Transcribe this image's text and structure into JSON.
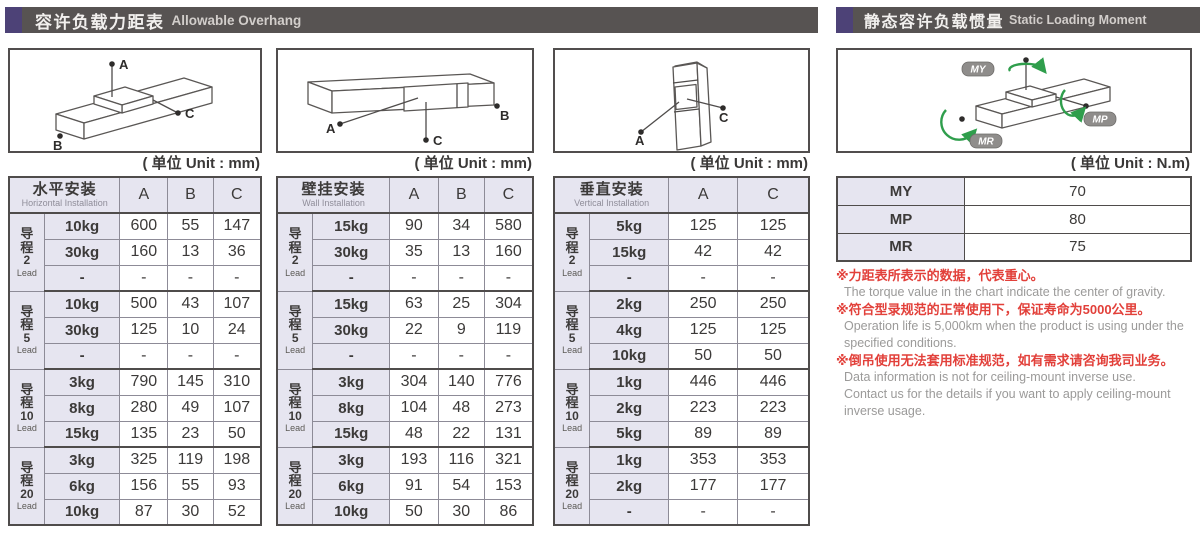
{
  "page": {
    "left_header": {
      "zh": "容许负载力距表",
      "en": "Allowable Overhang"
    },
    "right_header": {
      "zh": "静态容许负载惯量",
      "en": "Static Loading Moment"
    },
    "unit_mm": "( 单位 Unit : mm)",
    "unit_nm": "( 单位 Unit : N.m)"
  },
  "diagrams": {
    "horizontal": {
      "labels": [
        "A",
        "B",
        "C"
      ]
    },
    "wall": {
      "labels": [
        "A",
        "B",
        "C"
      ]
    },
    "vertical": {
      "labels": [
        "A",
        "C"
      ]
    },
    "moment": {
      "labels": [
        "MY",
        "MP",
        "MR"
      ]
    }
  },
  "overhang_tables": [
    {
      "id": "horizontal",
      "title_zh": "水平安装",
      "title_en": "Horizontal Installation",
      "columns": [
        "A",
        "B",
        "C"
      ],
      "col_widths": [
        "14%",
        "30%",
        "19%",
        "18%",
        "19%"
      ],
      "groups": [
        {
          "lead_chars": [
            "导",
            "程"
          ],
          "lead_num": "2",
          "lead_word": "Lead",
          "rows": [
            [
              "10kg",
              "600",
              "55",
              "147"
            ],
            [
              "30kg",
              "160",
              "13",
              "36"
            ],
            [
              "-",
              "-",
              "-",
              "-"
            ]
          ]
        },
        {
          "lead_chars": [
            "导",
            "程"
          ],
          "lead_num": "5",
          "lead_word": "Lead",
          "rows": [
            [
              "10kg",
              "500",
              "43",
              "107"
            ],
            [
              "30kg",
              "125",
              "10",
              "24"
            ],
            [
              "-",
              "-",
              "-",
              "-"
            ]
          ]
        },
        {
          "lead_chars": [
            "导",
            "程"
          ],
          "lead_num": "10",
          "lead_word": "Lead",
          "rows": [
            [
              "3kg",
              "790",
              "145",
              "310"
            ],
            [
              "8kg",
              "280",
              "49",
              "107"
            ],
            [
              "15kg",
              "135",
              "23",
              "50"
            ]
          ]
        },
        {
          "lead_chars": [
            "导",
            "程"
          ],
          "lead_num": "20",
          "lead_word": "Lead",
          "rows": [
            [
              "3kg",
              "325",
              "119",
              "198"
            ],
            [
              "6kg",
              "156",
              "55",
              "93"
            ],
            [
              "10kg",
              "87",
              "30",
              "52"
            ]
          ]
        }
      ]
    },
    {
      "id": "wall",
      "title_zh": "壁挂安装",
      "title_en": "Wall Installation",
      "columns": [
        "A",
        "B",
        "C"
      ],
      "col_widths": [
        "14%",
        "30%",
        "19%",
        "18%",
        "19%"
      ],
      "groups": [
        {
          "lead_chars": [
            "导",
            "程"
          ],
          "lead_num": "2",
          "lead_word": "Lead",
          "rows": [
            [
              "15kg",
              "90",
              "34",
              "580"
            ],
            [
              "30kg",
              "35",
              "13",
              "160"
            ],
            [
              "-",
              "-",
              "-",
              "-"
            ]
          ]
        },
        {
          "lead_chars": [
            "导",
            "程"
          ],
          "lead_num": "5",
          "lead_word": "Lead",
          "rows": [
            [
              "15kg",
              "63",
              "25",
              "304"
            ],
            [
              "30kg",
              "22",
              "9",
              "119"
            ],
            [
              "-",
              "-",
              "-",
              "-"
            ]
          ]
        },
        {
          "lead_chars": [
            "导",
            "程"
          ],
          "lead_num": "10",
          "lead_word": "Lead",
          "rows": [
            [
              "3kg",
              "304",
              "140",
              "776"
            ],
            [
              "8kg",
              "104",
              "48",
              "273"
            ],
            [
              "15kg",
              "48",
              "22",
              "131"
            ]
          ]
        },
        {
          "lead_chars": [
            "导",
            "程"
          ],
          "lead_num": "20",
          "lead_word": "Lead",
          "rows": [
            [
              "3kg",
              "193",
              "116",
              "321"
            ],
            [
              "6kg",
              "91",
              "54",
              "153"
            ],
            [
              "10kg",
              "50",
              "30",
              "86"
            ]
          ]
        }
      ]
    },
    {
      "id": "vertical",
      "title_zh": "垂直安装",
      "title_en": "Vertical Installation",
      "columns": [
        "A",
        "C"
      ],
      "col_widths": [
        "14%",
        "31%",
        "27%",
        "28%"
      ],
      "groups": [
        {
          "lead_chars": [
            "导",
            "程"
          ],
          "lead_num": "2",
          "lead_word": "Lead",
          "rows": [
            [
              "5kg",
              "125",
              "125"
            ],
            [
              "15kg",
              "42",
              "42"
            ],
            [
              "-",
              "-",
              "-"
            ]
          ]
        },
        {
          "lead_chars": [
            "导",
            "程"
          ],
          "lead_num": "5",
          "lead_word": "Lead",
          "rows": [
            [
              "2kg",
              "250",
              "250"
            ],
            [
              "4kg",
              "125",
              "125"
            ],
            [
              "10kg",
              "50",
              "50"
            ]
          ]
        },
        {
          "lead_chars": [
            "导",
            "程"
          ],
          "lead_num": "10",
          "lead_word": "Lead",
          "rows": [
            [
              "1kg",
              "446",
              "446"
            ],
            [
              "2kg",
              "223",
              "223"
            ],
            [
              "5kg",
              "89",
              "89"
            ]
          ]
        },
        {
          "lead_chars": [
            "导",
            "程"
          ],
          "lead_num": "20",
          "lead_word": "Lead",
          "rows": [
            [
              "1kg",
              "353",
              "353"
            ],
            [
              "2kg",
              "177",
              "177"
            ],
            [
              "-",
              "-",
              "-"
            ]
          ]
        }
      ]
    }
  ],
  "moment_table": {
    "rows": [
      {
        "label": "MY",
        "value": "70"
      },
      {
        "label": "MP",
        "value": "80"
      },
      {
        "label": "MR",
        "value": "75"
      }
    ]
  },
  "notes": [
    {
      "zh": "※力距表所表示的数据，代表重心。",
      "en": [
        "The torque value in the chart indicate the center of gravity."
      ]
    },
    {
      "zh": "※符合型录规范的正常使用下，保证寿命为5000公里。",
      "en": [
        "Operation life is 5,000km when the product is using under the",
        "specified conditions."
      ]
    },
    {
      "zh": "※倒吊使用无法套用标准规范，如有需求请咨询我司业务。",
      "en": [
        "Data information is not for ceiling-mount inverse use.",
        "Contact us for the details if you want to apply ceiling-mount",
        "inverse usage."
      ]
    }
  ],
  "colors": {
    "bar_bg": "#575352",
    "bar_accent": "#4d4277",
    "cell_lavender": "#e6e5f0",
    "border_dark": "#4f4c4b",
    "border_light": "#8d8b97",
    "note_red": "#e2403a",
    "note_gray": "#9b9a99",
    "arrow_green": "#2f9e4c"
  }
}
